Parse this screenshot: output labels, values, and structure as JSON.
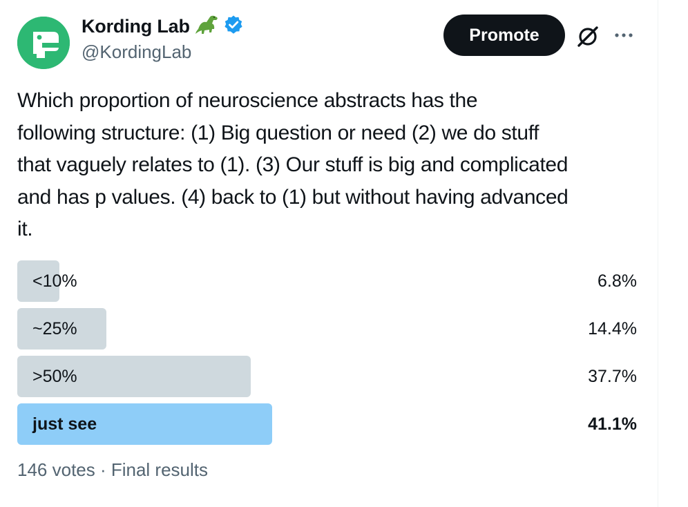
{
  "author": {
    "display_name": "Kording Lab",
    "emoji_icon": "t-rex-emoji",
    "verified_icon": "verified-badge-icon",
    "verified_color": "#1d9bf0",
    "handle": "@KordingLab",
    "avatar_color": "#2db873"
  },
  "actions": {
    "promote_label": "Promote",
    "grok_icon": "grok-icon",
    "more_icon": "more-options-icon"
  },
  "tweet": {
    "text": "Which proportion of neuroscience abstracts has the\nfollowing structure: (1) Big question or need (2) we do stuff\nthat vaguely relates to (1). (3) Our stuff is big and complicated\nand has p values. (4) back to (1) but without having advanced\nit."
  },
  "poll": {
    "options": [
      {
        "label": "<10%",
        "percent_text": "6.8%",
        "percent": 6.8,
        "winner": false
      },
      {
        "label": "~25%",
        "percent_text": "14.4%",
        "percent": 14.4,
        "winner": false
      },
      {
        "label": ">50%",
        "percent_text": "37.7%",
        "percent": 37.7,
        "winner": false
      },
      {
        "label": "just see",
        "percent_text": "41.1%",
        "percent": 41.1,
        "winner": true
      }
    ],
    "bar_color": "#cfd9de",
    "winner_bar_color": "#8ecdf8",
    "footer": "146 votes · Final results"
  }
}
